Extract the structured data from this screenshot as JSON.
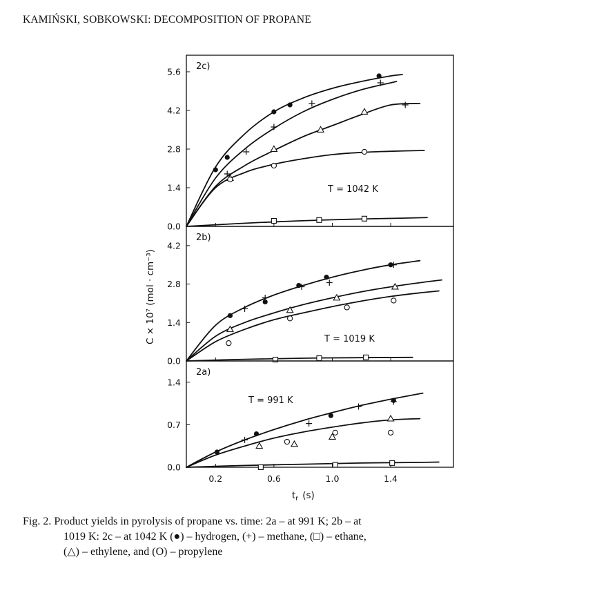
{
  "header": "KAMIŃSKI, SOBKOWSKI: DECOMPOSITION OF PROPANE",
  "caption": {
    "line1": "Fig. 2. Product yields in pyrolysis of propane vs. time: 2a – at 991 K; 2b – at",
    "line2": "1019 K: 2c – at 1042 K (●) – hydrogen, (+) – methane, (□) – ethane,",
    "line3": "(△) – ethylene, and (O) – propylene"
  },
  "chart_data": {
    "type": "scatter",
    "ylabel": "C × 10⁷ (mol · cm⁻³)",
    "xlabel": "t_r (s)",
    "xlabel_main": "t",
    "xlabel_sub": "r",
    "xlabel_unit": "(s)",
    "x_ticks": [
      0.2,
      0.6,
      1.0,
      1.4
    ],
    "xlim": [
      0.0,
      1.83
    ],
    "species": [
      {
        "key": "hydrogen",
        "marker": "filled-circle"
      },
      {
        "key": "methane",
        "marker": "plus"
      },
      {
        "key": "ethane",
        "marker": "square"
      },
      {
        "key": "ethylene",
        "marker": "triangle"
      },
      {
        "key": "propylene",
        "marker": "open-circle"
      }
    ],
    "panels": [
      {
        "label": "2c)",
        "temperature": "T = 1042 K",
        "ylim": [
          0.0,
          6.2
        ],
        "y_ticks": [
          "0.0",
          "1.4",
          "2.8",
          "4.2",
          "5.6"
        ],
        "series": [
          {
            "species": "hydrogen",
            "points": [
              [
                0.2,
                2.05
              ],
              [
                0.28,
                2.5
              ],
              [
                0.6,
                4.15
              ],
              [
                0.71,
                4.4
              ],
              [
                1.32,
                5.45
              ]
            ]
          },
          {
            "species": "methane",
            "points": [
              [
                0.28,
                1.9
              ],
              [
                0.41,
                2.7
              ],
              [
                0.6,
                3.6
              ],
              [
                0.86,
                4.45
              ],
              [
                1.33,
                5.2
              ],
              [
                1.5,
                4.4
              ]
            ]
          },
          {
            "species": "ethylene",
            "points": [
              [
                0.3,
                1.75
              ],
              [
                0.6,
                2.8
              ],
              [
                0.92,
                3.5
              ],
              [
                1.22,
                4.15
              ]
            ]
          },
          {
            "species": "propylene",
            "points": [
              [
                0.3,
                1.7
              ],
              [
                0.6,
                2.2
              ],
              [
                1.22,
                2.7
              ]
            ]
          },
          {
            "species": "ethane",
            "points": [
              [
                0.6,
                0.2
              ],
              [
                0.91,
                0.23
              ],
              [
                1.22,
                0.28
              ]
            ]
          }
        ],
        "curves": [
          [
            [
              0.0,
              0.0
            ],
            [
              0.2,
              2.15
            ],
            [
              0.4,
              3.35
            ],
            [
              0.6,
              4.15
            ],
            [
              0.8,
              4.65
            ],
            [
              1.0,
              5.0
            ],
            [
              1.2,
              5.25
            ],
            [
              1.4,
              5.45
            ],
            [
              1.48,
              5.5
            ]
          ],
          [
            [
              0.0,
              0.0
            ],
            [
              0.2,
              1.75
            ],
            [
              0.4,
              2.8
            ],
            [
              0.6,
              3.55
            ],
            [
              0.8,
              4.15
            ],
            [
              1.0,
              4.6
            ],
            [
              1.2,
              4.95
            ],
            [
              1.4,
              5.2
            ],
            [
              1.44,
              5.25
            ]
          ],
          [
            [
              0.0,
              0.0
            ],
            [
              0.2,
              1.45
            ],
            [
              0.4,
              2.2
            ],
            [
              0.6,
              2.75
            ],
            [
              0.8,
              3.25
            ],
            [
              1.0,
              3.65
            ],
            [
              1.2,
              4.05
            ],
            [
              1.4,
              4.4
            ],
            [
              1.6,
              4.45
            ]
          ],
          [
            [
              0.0,
              0.0
            ],
            [
              0.2,
              1.4
            ],
            [
              0.4,
              1.95
            ],
            [
              0.6,
              2.25
            ],
            [
              0.8,
              2.45
            ],
            [
              1.0,
              2.6
            ],
            [
              1.2,
              2.68
            ],
            [
              1.4,
              2.72
            ],
            [
              1.63,
              2.75
            ]
          ],
          [
            [
              0.0,
              0.0
            ],
            [
              0.5,
              0.14
            ],
            [
              1.0,
              0.24
            ],
            [
              1.5,
              0.3
            ],
            [
              1.65,
              0.32
            ]
          ]
        ]
      },
      {
        "label": "2b)",
        "temperature": "T = 1019 K",
        "ylim": [
          0.0,
          4.9
        ],
        "y_ticks": [
          "0.0",
          "1.4",
          "2.8",
          "4.2"
        ],
        "series": [
          {
            "species": "hydrogen",
            "points": [
              [
                0.3,
                1.65
              ],
              [
                0.54,
                2.15
              ],
              [
                0.77,
                2.75
              ],
              [
                0.96,
                3.05
              ],
              [
                1.4,
                3.5
              ]
            ]
          },
          {
            "species": "methane",
            "points": [
              [
                0.4,
                1.9
              ],
              [
                0.54,
                2.3
              ],
              [
                0.79,
                2.7
              ],
              [
                0.98,
                2.85
              ],
              [
                1.42,
                3.5
              ]
            ]
          },
          {
            "species": "ethylene",
            "points": [
              [
                0.3,
                1.15
              ],
              [
                0.71,
                1.85
              ],
              [
                1.03,
                2.3
              ],
              [
                1.43,
                2.7
              ]
            ]
          },
          {
            "species": "propylene",
            "points": [
              [
                0.29,
                0.65
              ],
              [
                0.71,
                1.55
              ],
              [
                1.1,
                1.95
              ],
              [
                1.42,
                2.2
              ]
            ]
          },
          {
            "species": "ethane",
            "points": [
              [
                0.61,
                0.05
              ],
              [
                0.91,
                0.1
              ],
              [
                1.23,
                0.13
              ]
            ]
          }
        ],
        "curves": [
          [
            [
              0.0,
              0.0
            ],
            [
              0.2,
              1.3
            ],
            [
              0.4,
              1.95
            ],
            [
              0.6,
              2.4
            ],
            [
              0.8,
              2.75
            ],
            [
              1.0,
              3.05
            ],
            [
              1.2,
              3.3
            ],
            [
              1.4,
              3.5
            ],
            [
              1.6,
              3.65
            ]
          ],
          [
            [
              0.0,
              0.0
            ],
            [
              0.2,
              0.9
            ],
            [
              0.4,
              1.4
            ],
            [
              0.6,
              1.75
            ],
            [
              0.8,
              2.05
            ],
            [
              1.0,
              2.3
            ],
            [
              1.2,
              2.52
            ],
            [
              1.4,
              2.7
            ],
            [
              1.6,
              2.85
            ],
            [
              1.75,
              2.95
            ]
          ],
          [
            [
              0.0,
              0.0
            ],
            [
              0.2,
              0.7
            ],
            [
              0.4,
              1.15
            ],
            [
              0.6,
              1.5
            ],
            [
              0.8,
              1.75
            ],
            [
              1.0,
              1.98
            ],
            [
              1.2,
              2.18
            ],
            [
              1.4,
              2.35
            ],
            [
              1.6,
              2.48
            ],
            [
              1.73,
              2.55
            ]
          ],
          [
            [
              0.0,
              0.0
            ],
            [
              0.4,
              0.06
            ],
            [
              0.8,
              0.1
            ],
            [
              1.2,
              0.12
            ],
            [
              1.55,
              0.13
            ]
          ]
        ]
      },
      {
        "label": "2a)",
        "temperature": "T = 991 K",
        "ylim": [
          0.0,
          1.75
        ],
        "y_ticks": [
          "0.0",
          "0.7",
          "1.4"
        ],
        "series": [
          {
            "species": "hydrogen",
            "points": [
              [
                0.21,
                0.25
              ],
              [
                0.48,
                0.55
              ],
              [
                0.99,
                0.85
              ],
              [
                1.42,
                1.1
              ]
            ]
          },
          {
            "species": "methane",
            "points": [
              [
                0.4,
                0.45
              ],
              [
                0.84,
                0.72
              ],
              [
                1.18,
                1.0
              ],
              [
                1.42,
                1.08
              ]
            ]
          },
          {
            "species": "ethylene",
            "points": [
              [
                0.5,
                0.35
              ],
              [
                0.74,
                0.38
              ],
              [
                1.0,
                0.5
              ],
              [
                1.4,
                0.8
              ]
            ]
          },
          {
            "species": "propylene",
            "points": [
              [
                0.69,
                0.42
              ],
              [
                1.02,
                0.57
              ],
              [
                1.4,
                0.57
              ]
            ]
          },
          {
            "species": "ethane",
            "points": [
              [
                0.51,
                0.0
              ],
              [
                1.02,
                0.04
              ],
              [
                1.41,
                0.07
              ]
            ]
          }
        ],
        "curves": [
          [
            [
              0.0,
              0.0
            ],
            [
              0.2,
              0.25
            ],
            [
              0.4,
              0.45
            ],
            [
              0.6,
              0.62
            ],
            [
              0.8,
              0.77
            ],
            [
              1.0,
              0.9
            ],
            [
              1.2,
              1.02
            ],
            [
              1.4,
              1.12
            ],
            [
              1.62,
              1.22
            ]
          ],
          [
            [
              0.0,
              0.0
            ],
            [
              0.2,
              0.2
            ],
            [
              0.4,
              0.35
            ],
            [
              0.6,
              0.48
            ],
            [
              0.8,
              0.58
            ],
            [
              1.0,
              0.66
            ],
            [
              1.2,
              0.73
            ],
            [
              1.4,
              0.78
            ],
            [
              1.6,
              0.8
            ]
          ],
          [
            [
              0.0,
              0.0
            ],
            [
              0.4,
              0.03
            ],
            [
              0.8,
              0.05
            ],
            [
              1.2,
              0.07
            ],
            [
              1.6,
              0.08
            ],
            [
              1.73,
              0.085
            ]
          ]
        ]
      }
    ]
  }
}
